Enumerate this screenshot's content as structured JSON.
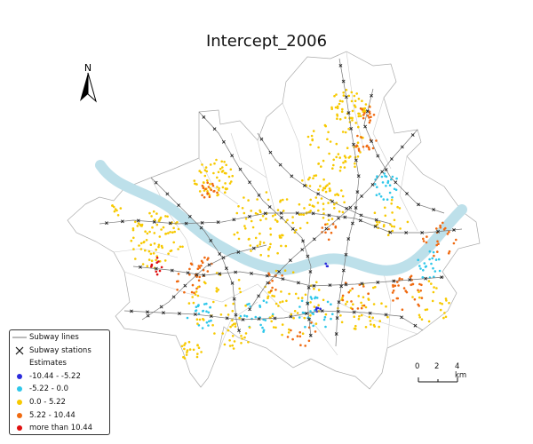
{
  "title": "Intercept_2006",
  "north_arrow": {
    "label": "N"
  },
  "legend": {
    "subway_lines": "Subway lines",
    "subway_stations": "Subway stations",
    "estimates_heading": "Estimates",
    "classes": [
      {
        "label": "-10.44 - -5.22",
        "color": "#2b2bdc"
      },
      {
        "label": "-5.22 - 0.0",
        "color": "#2ec7ea"
      },
      {
        "label": "0.0 - 5.22",
        "color": "#f7c900"
      },
      {
        "label": "5.22 - 10.44",
        "color": "#f06a10"
      },
      {
        "label": "more than 10.44",
        "color": "#e01010"
      }
    ]
  },
  "scale_bar": {
    "labels": [
      "0",
      "2",
      "4 km"
    ]
  },
  "colors": {
    "river": "#bde0ea",
    "boundary": "#aaaaaa",
    "subway_line": "#777777",
    "station": "#222222"
  }
}
